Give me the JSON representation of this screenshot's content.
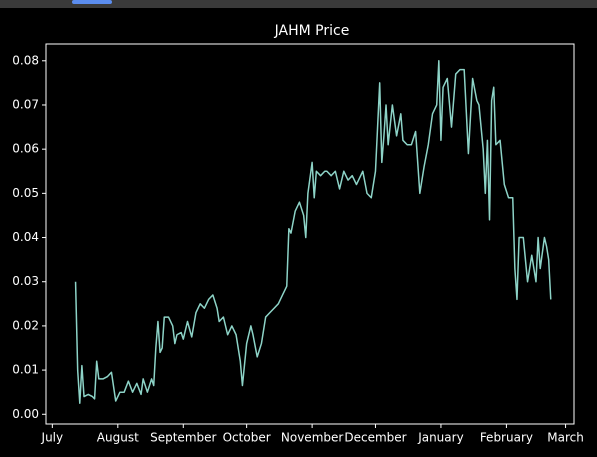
{
  "chart_data": {
    "type": "line",
    "title": "JAHM Price",
    "x": [
      11,
      12,
      13,
      14,
      15,
      17,
      19,
      20,
      21,
      22,
      24,
      26,
      28,
      30,
      32,
      34,
      36,
      38,
      40,
      42,
      43,
      45,
      47,
      48,
      49,
      50,
      51,
      52,
      53,
      55,
      57,
      58,
      59,
      61,
      62,
      64,
      66,
      68,
      70,
      72,
      74,
      76,
      78,
      79,
      81,
      83,
      85,
      87,
      89,
      90,
      92,
      94,
      95,
      97,
      99,
      101,
      103,
      105,
      107,
      109,
      111,
      112,
      113,
      115,
      117,
      119,
      120,
      121,
      123,
      124,
      125,
      127,
      129,
      130,
      132,
      134,
      136,
      138,
      140,
      142,
      144,
      145,
      147,
      149,
      151,
      153,
      155,
      156,
      157,
      158,
      159,
      161,
      163,
      165,
      166,
      168,
      170,
      172,
      174,
      176,
      178,
      180,
      182,
      183,
      184,
      185,
      187,
      189,
      191,
      193,
      195,
      197,
      199,
      201,
      202,
      204,
      205,
      206,
      207,
      208,
      209,
      210,
      212,
      214,
      216,
      218,
      219,
      220,
      221,
      223,
      225,
      227,
      229,
      230,
      231,
      233,
      234,
      235,
      236
    ],
    "series": [
      {
        "name": "JAHM",
        "color": "#8dd3c7",
        "values": [
          0.03,
          0.01,
          0.0025,
          0.011,
          0.004,
          0.0045,
          0.004,
          0.0035,
          0.012,
          0.008,
          0.008,
          0.0085,
          0.0095,
          0.003,
          0.005,
          0.005,
          0.0075,
          0.005,
          0.007,
          0.0045,
          0.008,
          0.005,
          0.008,
          0.0065,
          0.015,
          0.021,
          0.014,
          0.015,
          0.022,
          0.022,
          0.02,
          0.016,
          0.018,
          0.0185,
          0.017,
          0.021,
          0.0175,
          0.023,
          0.025,
          0.024,
          0.026,
          0.027,
          0.024,
          0.021,
          0.022,
          0.018,
          0.02,
          0.018,
          0.012,
          0.0065,
          0.016,
          0.02,
          0.018,
          0.013,
          0.016,
          0.022,
          0.023,
          0.024,
          0.025,
          0.027,
          0.029,
          0.042,
          0.041,
          0.046,
          0.048,
          0.045,
          0.04,
          0.05,
          0.057,
          0.049,
          0.055,
          0.054,
          0.055,
          0.055,
          0.054,
          0.055,
          0.051,
          0.055,
          0.053,
          0.054,
          0.052,
          0.053,
          0.055,
          0.05,
          0.049,
          0.055,
          0.075,
          0.057,
          0.063,
          0.07,
          0.061,
          0.07,
          0.063,
          0.068,
          0.062,
          0.061,
          0.061,
          0.064,
          0.05,
          0.056,
          0.061,
          0.068,
          0.07,
          0.08,
          0.062,
          0.074,
          0.076,
          0.065,
          0.077,
          0.078,
          0.078,
          0.059,
          0.076,
          0.071,
          0.07,
          0.06,
          0.05,
          0.062,
          0.044,
          0.071,
          0.074,
          0.061,
          0.062,
          0.052,
          0.049,
          0.049,
          0.033,
          0.026,
          0.04,
          0.04,
          0.03,
          0.036,
          0.03,
          0.04,
          0.033,
          0.04,
          0.038,
          0.035,
          0.026
        ]
      }
    ],
    "xlim": [
      -3,
      247
    ],
    "xticks": [
      {
        "value": 0,
        "label": "July"
      },
      {
        "value": 31,
        "label": "August"
      },
      {
        "value": 62,
        "label": "September"
      },
      {
        "value": 92,
        "label": "October"
      },
      {
        "value": 123,
        "label": "November"
      },
      {
        "value": 153,
        "label": "December"
      },
      {
        "value": 184,
        "label": "January"
      },
      {
        "value": 215,
        "label": "February"
      },
      {
        "value": 243,
        "label": "March"
      }
    ],
    "ylim": [
      -0.0022,
      0.0838
    ],
    "yticks": [
      {
        "value": 0,
        "label": "0.00"
      },
      {
        "value": 0.01,
        "label": "0.01"
      },
      {
        "value": 0.02,
        "label": "0.02"
      },
      {
        "value": 0.03,
        "label": "0.03"
      },
      {
        "value": 0.04,
        "label": "0.04"
      },
      {
        "value": 0.05,
        "label": "0.05"
      },
      {
        "value": 0.06,
        "label": "0.06"
      },
      {
        "value": 0.07,
        "label": "0.07"
      },
      {
        "value": 0.08,
        "label": "0.08"
      }
    ]
  }
}
